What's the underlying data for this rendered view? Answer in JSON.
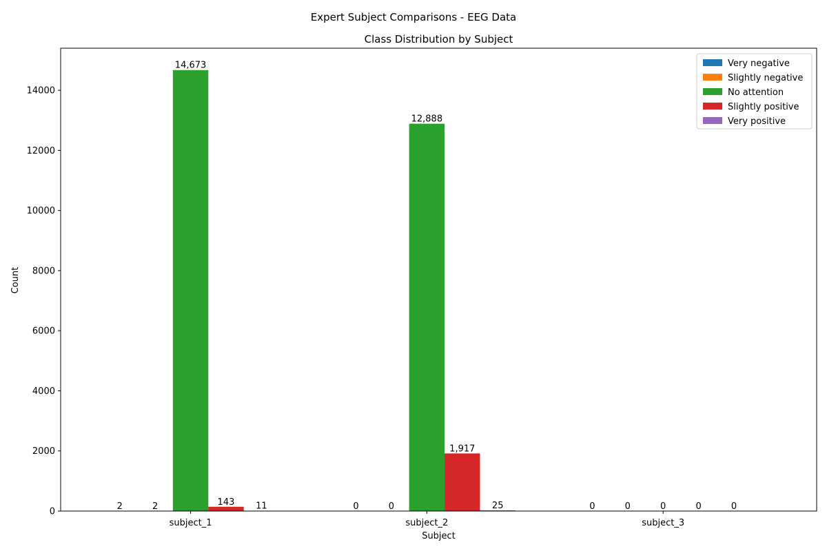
{
  "suptitle": "Expert Subject Comparisons - EEG Data",
  "chart_data": {
    "type": "bar",
    "title": "Class Distribution by Subject",
    "xlabel": "Subject",
    "ylabel": "Count",
    "categories": [
      "subject_1",
      "subject_2",
      "subject_3"
    ],
    "ylim": [
      0,
      15400
    ],
    "yticks": [
      0,
      2000,
      4000,
      6000,
      8000,
      10000,
      12000,
      14000
    ],
    "grid": false,
    "legend_position": "top-right",
    "series": [
      {
        "name": "Very negative",
        "color": "#1f77b4",
        "values": [
          2,
          0,
          0
        ],
        "labels": [
          "2",
          "0",
          "0"
        ]
      },
      {
        "name": "Slightly negative",
        "color": "#ff7f0e",
        "values": [
          2,
          0,
          0
        ],
        "labels": [
          "2",
          "0",
          "0"
        ]
      },
      {
        "name": "No attention",
        "color": "#2ca02c",
        "values": [
          14673,
          12888,
          0
        ],
        "labels": [
          "14,673",
          "12,888",
          "0"
        ]
      },
      {
        "name": "Slightly positive",
        "color": "#d62728",
        "values": [
          143,
          1917,
          0
        ],
        "labels": [
          "143",
          "1,917",
          "0"
        ]
      },
      {
        "name": "Very positive",
        "color": "#9467bd",
        "values": [
          11,
          25,
          0
        ],
        "labels": [
          "11",
          "25",
          "0"
        ]
      }
    ]
  }
}
